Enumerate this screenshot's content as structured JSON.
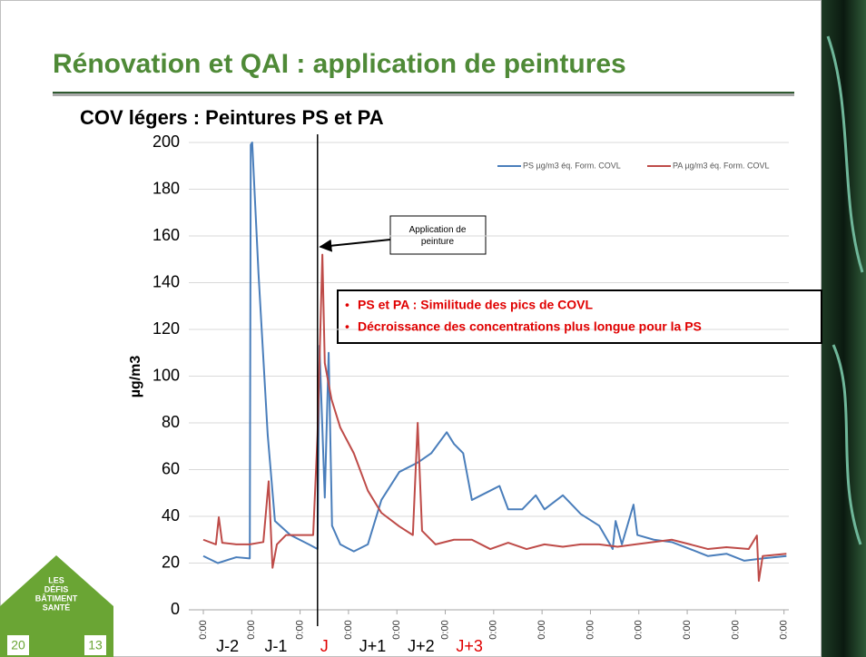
{
  "slide": {
    "title": "Rénovation et QAI : application de peintures",
    "logo": {
      "lines": [
        "LES",
        "DÉFIS",
        "BÂTIMENT",
        "SANTÉ"
      ],
      "year_left": "20",
      "year_right": "13"
    }
  },
  "chart_data": {
    "type": "line",
    "title": "COV légers : Peintures PS et PA",
    "y_label": "µg/m3",
    "series": [
      {
        "name": "PS µg/m3 éq. Form. COVL",
        "color": "#4a7ebb",
        "x": [
          0,
          0.3,
          0.68,
          0.96,
          0.98,
          1.01,
          1.14,
          1.33,
          1.48,
          1.8,
          2.18,
          2.36,
          2.4,
          2.51,
          2.59,
          2.66,
          2.83,
          3.11,
          3.4,
          3.68,
          4.05,
          4.43,
          4.71,
          5.03,
          5.18,
          5.37,
          5.55,
          5.74,
          5.93,
          6.12,
          6.3,
          6.59,
          6.87,
          7.05,
          7.43,
          7.8,
          8.18,
          8.46,
          8.52,
          8.65,
          8.89,
          8.97,
          9.31,
          9.68,
          10.06,
          10.43,
          10.81,
          11.18,
          11.56,
          12.05
        ],
        "values": [
          23,
          20,
          22.5,
          22,
          199,
          200,
          144,
          75,
          38,
          32,
          28,
          26,
          113,
          48,
          110,
          36,
          28,
          25,
          28,
          47,
          59,
          63,
          67,
          76,
          71,
          67,
          47,
          49,
          51,
          53,
          43,
          43,
          49,
          43,
          49,
          41,
          36,
          26,
          38,
          28,
          45,
          32,
          30,
          29,
          26,
          23,
          24,
          21,
          22,
          23
        ]
      },
      {
        "name": "PA µg/m3 éq. Form. COVL",
        "color": "#be4b48",
        "x": [
          0,
          0.26,
          0.32,
          0.39,
          0.68,
          0.96,
          1.24,
          1.35,
          1.43,
          1.52,
          1.71,
          1.99,
          2.27,
          2.36,
          2.46,
          2.51,
          2.65,
          2.83,
          3.11,
          3.4,
          3.68,
          4.05,
          4.33,
          4.43,
          4.52,
          4.8,
          5.18,
          5.55,
          5.93,
          6.3,
          6.68,
          7.05,
          7.43,
          7.8,
          8.18,
          8.56,
          8.93,
          9.68,
          10.06,
          10.43,
          10.81,
          11.27,
          11.44,
          11.48,
          11.56,
          12.05
        ],
        "values": [
          30,
          28,
          39.6,
          28.7,
          28,
          28,
          29,
          55,
          18,
          28,
          32,
          32,
          32,
          74.6,
          152,
          105.6,
          90,
          78,
          67,
          51,
          41.5,
          35.7,
          32,
          80,
          33.8,
          28,
          30,
          30,
          26,
          28.7,
          26,
          28,
          27,
          28,
          28,
          27,
          28,
          30,
          28,
          26,
          26.8,
          26,
          31.8,
          12.4,
          23,
          24
        ]
      }
    ],
    "xlim": [
      -0.3,
      12.1
    ],
    "xticks": [
      {
        "value": 0,
        "label": "0:00"
      },
      {
        "value": 1,
        "label": "0:00"
      },
      {
        "value": 2,
        "label": "0:00"
      },
      {
        "value": 3,
        "label": "0:00"
      },
      {
        "value": 4,
        "label": "0:00"
      },
      {
        "value": 5,
        "label": "0:00"
      },
      {
        "value": 6,
        "label": "0:00"
      },
      {
        "value": 7,
        "label": "0:00"
      },
      {
        "value": 8,
        "label": "0:00"
      },
      {
        "value": 9,
        "label": "0:00"
      },
      {
        "value": 10,
        "label": "0:00"
      },
      {
        "value": 11,
        "label": "0:00"
      },
      {
        "value": 12,
        "label": "0:00"
      }
    ],
    "ylim": [
      0,
      200
    ],
    "yticks": [
      0,
      20,
      40,
      60,
      80,
      100,
      120,
      140,
      160,
      180,
      200
    ],
    "grid": true,
    "legend": "top-right",
    "day_labels": [
      {
        "text": "J-2",
        "x": 0.5,
        "color": "#000000"
      },
      {
        "text": "J-1",
        "x": 1.5,
        "color": "#000000"
      },
      {
        "text": "J",
        "x": 2.5,
        "color": "#e00000"
      },
      {
        "text": "J+1",
        "x": 3.5,
        "color": "#000000"
      },
      {
        "text": "J+2",
        "x": 4.5,
        "color": "#000000"
      },
      {
        "text": "J+3",
        "x": 5.5,
        "color": "#e00000"
      }
    ],
    "annotation": {
      "text": "Application de peinture",
      "x": 2.36
    },
    "notes": {
      "color": "#e00000",
      "items": [
        "PS et PA : Similitude des pics de COVL",
        "Décroissance des concentrations plus longue pour la PS"
      ]
    }
  }
}
